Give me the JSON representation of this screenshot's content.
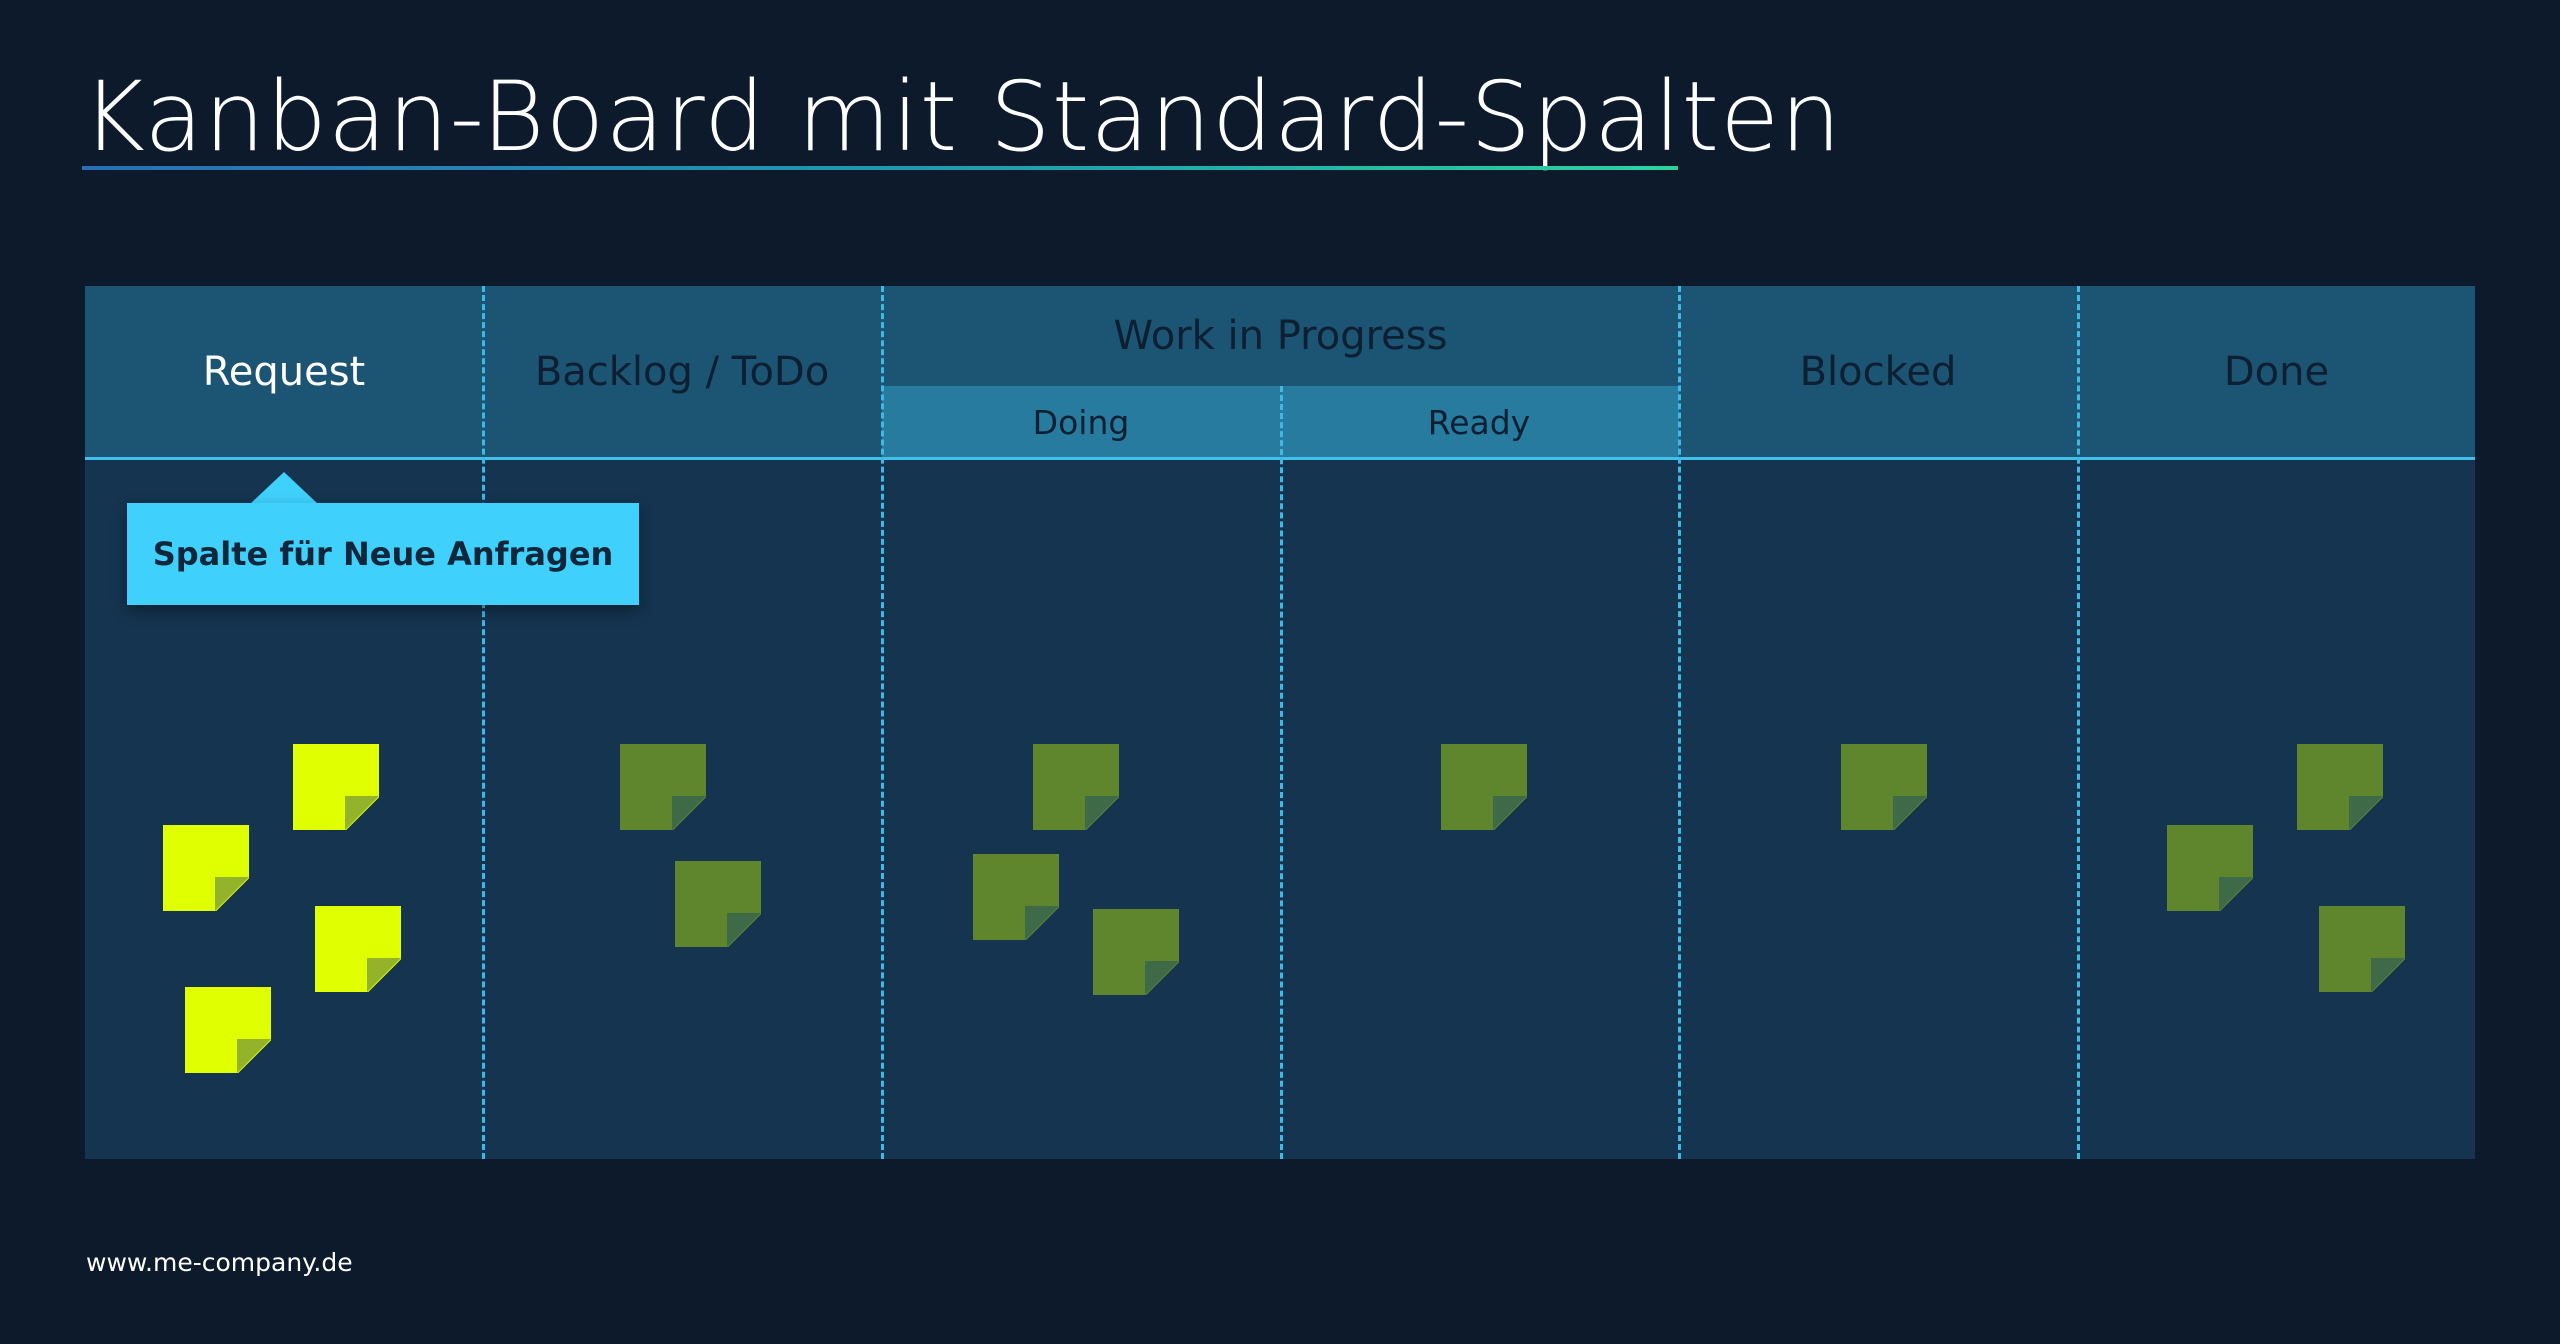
{
  "title": "Kanban-Board mit Standard-Spalten",
  "board": {
    "columns": {
      "request": "Request",
      "backlog": "Backlog / ToDo",
      "wip": "Work in Progress",
      "doing": "Doing",
      "ready": "Ready",
      "blocked": "Blocked",
      "done": "Done"
    },
    "tooltip": "Spalte für Neue Anfragen",
    "note_colors": {
      "new": "#e0ff00",
      "in_flow": "#5f852d"
    },
    "note_counts": {
      "request": 4,
      "backlog": 2,
      "doing": 3,
      "ready": 1,
      "blocked": 1,
      "done": 3
    }
  },
  "footer": "www.me-company.de"
}
